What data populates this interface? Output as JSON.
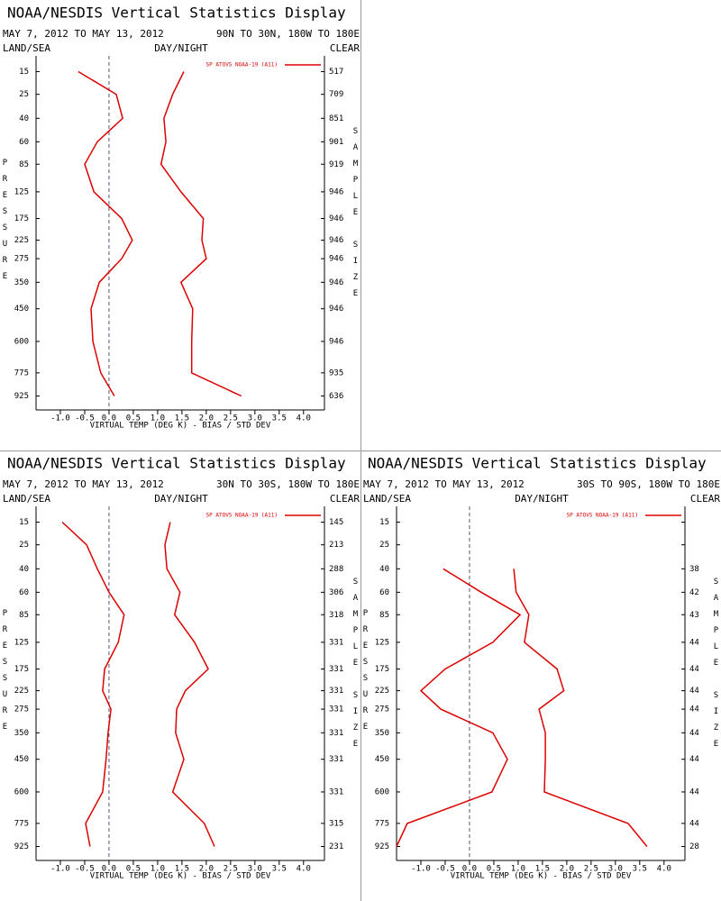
{
  "chart_data": [
    {
      "type": "line",
      "title": "NOAA/NESDIS Vertical Statistics Display",
      "date_range": "MAY 7, 2012 TO MAY 13, 2012",
      "region": "90N TO 30N, 180W TO 180E",
      "land_sea": "LAND/SEA",
      "day_night": "DAY/NIGHT",
      "cloud": "CLEAR",
      "ylabel": "PRESSURE",
      "y2label": "SAMPLE SIZE",
      "xlabel": "VIRTUAL TEMP (DEG K) - BIAS / STD DEV",
      "legend": "SP ATOVS NOAA-19 (A11)",
      "color": "#dd0000",
      "y": [
        15,
        25,
        40,
        60,
        85,
        125,
        175,
        225,
        275,
        350,
        450,
        600,
        775,
        925
      ],
      "series": [
        {
          "values": [
            -0.63,
            0.15,
            0.28,
            -0.24,
            -0.5,
            -0.31,
            0.26,
            0.48,
            0.26,
            -0.2,
            -0.37,
            -0.33,
            -0.17,
            0.11
          ]
        },
        {
          "values": [
            1.54,
            1.31,
            1.13,
            1.17,
            1.07,
            1.48,
            1.94,
            1.91,
            2.0,
            1.48,
            1.72,
            1.7,
            1.7,
            2.72
          ]
        }
      ],
      "sample_size": [
        517,
        709,
        851,
        901,
        919,
        946,
        946,
        946,
        946,
        946,
        946,
        946,
        935,
        636
      ],
      "xlim": [
        -1.5,
        4.43
      ],
      "ylim": [
        10,
        1025
      ],
      "xticks": [
        {
          "value": -1,
          "label": "-1.0"
        },
        -0.5,
        {
          "value": 0,
          "label": "0.0"
        },
        0.5,
        {
          "value": 1,
          "label": "1.0"
        },
        1.5,
        {
          "value": 2,
          "label": "2.0"
        },
        2.5,
        {
          "value": 3,
          "label": "3.0"
        },
        3.5,
        {
          "value": 4,
          "label": "4.0"
        }
      ],
      "yticks": [
        15,
        25,
        40,
        60,
        85,
        125,
        175,
        225,
        275,
        350,
        450,
        600,
        775,
        925
      ]
    },
    {
      "type": "line",
      "title": "NOAA/NESDIS Vertical Statistics Display",
      "date_range": "MAY 7, 2012 TO MAY 13, 2012",
      "region": "30N TO 30S, 180W TO 180E",
      "land_sea": "LAND/SEA",
      "day_night": "DAY/NIGHT",
      "cloud": "CLEAR",
      "ylabel": "PRESSURE",
      "y2label": "SAMPLE SIZE",
      "xlabel": "VIRTUAL TEMP (DEG K) - BIAS / STD DEV",
      "legend": "SP ATOVS NOAA-19 (A11)",
      "color": "#dd0000",
      "y": [
        15,
        25,
        40,
        60,
        85,
        125,
        175,
        225,
        275,
        350,
        450,
        600,
        775,
        925
      ],
      "series": [
        {
          "values": [
            -0.96,
            -0.46,
            -0.24,
            0.0,
            0.31,
            0.19,
            -0.09,
            -0.13,
            0.04,
            -0.02,
            -0.06,
            -0.13,
            -0.48,
            -0.39
          ]
        },
        {
          "values": [
            1.26,
            1.15,
            1.19,
            1.46,
            1.35,
            1.76,
            2.04,
            1.57,
            1.39,
            1.37,
            1.54,
            1.31,
            1.96,
            2.17
          ]
        }
      ],
      "sample_size": [
        145,
        213,
        288,
        306,
        318,
        331,
        331,
        331,
        331,
        331,
        331,
        331,
        315,
        231
      ],
      "xlim": [
        -1.5,
        4.43
      ],
      "ylim": [
        10,
        1025
      ],
      "xticks": [
        {
          "value": -1,
          "label": "-1.0"
        },
        -0.5,
        {
          "value": 0,
          "label": "0.0"
        },
        0.5,
        {
          "value": 1,
          "label": "1.0"
        },
        1.5,
        {
          "value": 2,
          "label": "2.0"
        },
        2.5,
        {
          "value": 3,
          "label": "3.0"
        },
        3.5,
        {
          "value": 4,
          "label": "4.0"
        }
      ],
      "yticks": [
        15,
        25,
        40,
        60,
        85,
        125,
        175,
        225,
        275,
        350,
        450,
        600,
        775,
        925
      ]
    },
    {
      "type": "line",
      "title": "NOAA/NESDIS Vertical Statistics Display",
      "date_range": "MAY 7, 2012 TO MAY 13, 2012",
      "region": "30S TO 90S, 180W TO 180E",
      "land_sea": "LAND/SEA",
      "day_night": "DAY/NIGHT",
      "cloud": "CLEAR",
      "ylabel": "PRESSURE",
      "y2label": "SAMPLE SIZE",
      "xlabel": "VIRTUAL TEMP (DEG K) - BIAS / STD DEV",
      "legend": "SP ATOVS NOAA-19 (A11)",
      "color": "#dd0000",
      "y": [
        15,
        25,
        40,
        60,
        85,
        125,
        175,
        225,
        275,
        350,
        450,
        600,
        775,
        925
      ],
      "series": [
        {
          "values": [
            null,
            null,
            -0.54,
            0.24,
            1.04,
            0.48,
            -0.5,
            -1.0,
            -0.59,
            0.48,
            0.78,
            0.46,
            -1.28,
            -1.5
          ]
        },
        {
          "values": [
            null,
            null,
            0.91,
            0.96,
            1.22,
            1.13,
            1.8,
            1.94,
            1.43,
            1.56,
            1.56,
            1.54,
            3.26,
            3.65
          ]
        }
      ],
      "sample_size": [
        null,
        null,
        38,
        42,
        43,
        44,
        44,
        44,
        44,
        44,
        44,
        44,
        44,
        28
      ],
      "xlim": [
        -1.5,
        4.43
      ],
      "ylim": [
        10,
        1025
      ],
      "xticks": [
        {
          "value": -1,
          "label": "-1.0"
        },
        -0.5,
        {
          "value": 0,
          "label": "0.0"
        },
        0.5,
        {
          "value": 1,
          "label": "1.0"
        },
        1.5,
        {
          "value": 2,
          "label": "2.0"
        },
        2.5,
        {
          "value": 3,
          "label": "3.0"
        },
        3.5,
        {
          "value": 4,
          "label": "4.0"
        }
      ],
      "yticks": [
        15,
        25,
        40,
        60,
        85,
        125,
        175,
        225,
        275,
        350,
        450,
        600,
        775,
        925
      ]
    }
  ]
}
